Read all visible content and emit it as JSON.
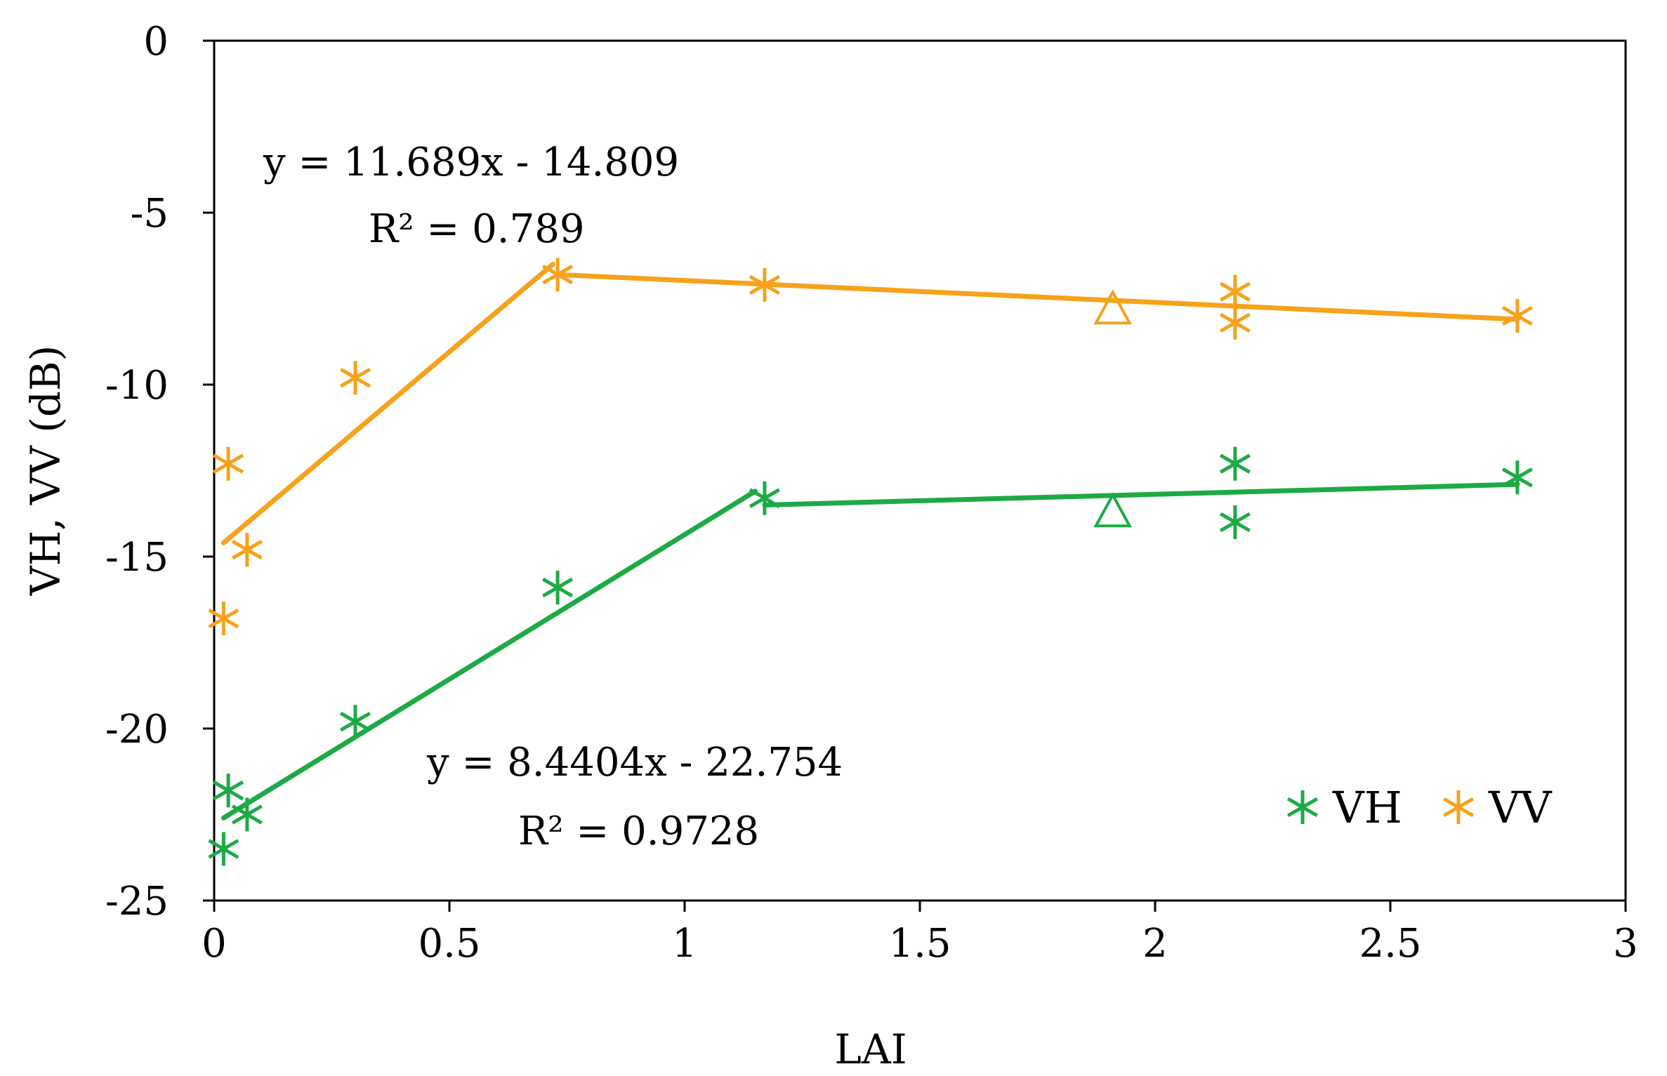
{
  "chart_data": {
    "type": "scatter",
    "xlabel": "LAI",
    "ylabel": "VH, VV (dB)",
    "xlim": [
      0,
      3
    ],
    "ylim": [
      -25,
      0
    ],
    "xticks": [
      0,
      0.5,
      1,
      1.5,
      2,
      2.5,
      3
    ],
    "xtick_labels": [
      "0",
      "0.5",
      "1",
      "1.5",
      "2",
      "2.5",
      "3"
    ],
    "yticks": [
      0,
      -5,
      -10,
      -15,
      -20,
      -25
    ],
    "ytick_labels": [
      "0",
      "-5",
      "-10",
      "-15",
      "-20",
      "-25"
    ],
    "legend_position": "bottom-right",
    "series": [
      {
        "name": "VH",
        "color": "#1daa45",
        "marker": "asterisk",
        "points": [
          {
            "x": 0.02,
            "y": -23.5
          },
          {
            "x": 0.03,
            "y": -21.8
          },
          {
            "x": 0.07,
            "y": -22.5
          },
          {
            "x": 0.3,
            "y": -19.8
          },
          {
            "x": 0.73,
            "y": -15.9
          },
          {
            "x": 1.17,
            "y": -13.3
          },
          {
            "x": 2.17,
            "y": -12.3
          },
          {
            "x": 2.17,
            "y": -14.0
          },
          {
            "x": 2.77,
            "y": -12.7
          }
        ],
        "outlier": {
          "x": 1.91,
          "y": -13.7
        },
        "fit_segments": [
          {
            "x": [
              0.02,
              1.15
            ],
            "y": [
              -22.6,
              -13.1
            ]
          },
          {
            "x": [
              1.17,
              2.77
            ],
            "y": [
              -13.5,
              -12.9
            ]
          }
        ]
      },
      {
        "name": "VV",
        "color": "#f7a21b",
        "marker": "asterisk",
        "points": [
          {
            "x": 0.02,
            "y": -16.8
          },
          {
            "x": 0.03,
            "y": -12.3
          },
          {
            "x": 0.07,
            "y": -14.8
          },
          {
            "x": 0.3,
            "y": -9.8
          },
          {
            "x": 0.73,
            "y": -6.8
          },
          {
            "x": 1.17,
            "y": -7.1
          },
          {
            "x": 2.17,
            "y": -7.3
          },
          {
            "x": 2.17,
            "y": -8.2
          },
          {
            "x": 2.77,
            "y": -8.0
          }
        ],
        "outlier": {
          "x": 1.91,
          "y": -7.8
        },
        "fit_segments": [
          {
            "x": [
              0.02,
              0.72
            ],
            "y": [
              -14.6,
              -6.5
            ]
          },
          {
            "x": [
              0.73,
              2.77
            ],
            "y": [
              -6.8,
              -8.1
            ]
          }
        ]
      }
    ],
    "annotations": {
      "vv_equation": "y = 11.689x - 14.809",
      "vv_r2": "R² = 0.789",
      "vh_equation": "y = 8.4404x - 22.754",
      "vh_r2": "R² = 0.9728"
    }
  }
}
